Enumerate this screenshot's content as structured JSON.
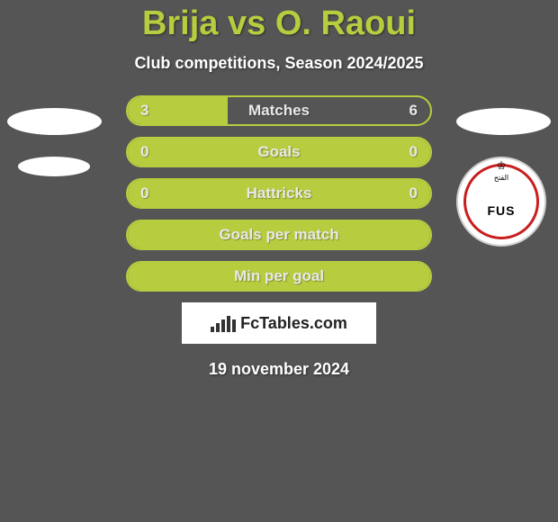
{
  "title": "Brija vs O. Raoui",
  "subtitle": "Club competitions, Season 2024/2025",
  "colors": {
    "background": "#555555",
    "accent": "#b8cc3f",
    "stat_text": "#e8e8e8",
    "white": "#ffffff",
    "logo_border": "#c81e1e"
  },
  "stats": [
    {
      "label": "Matches",
      "left_value": "3",
      "right_value": "6",
      "left_fill_pct": 33,
      "right_fill_pct": 67,
      "show_values": true
    },
    {
      "label": "Goals",
      "left_value": "0",
      "right_value": "0",
      "left_fill_pct": 100,
      "right_fill_pct": 0,
      "show_values": true,
      "full_fill": true
    },
    {
      "label": "Hattricks",
      "left_value": "0",
      "right_value": "0",
      "left_fill_pct": 100,
      "right_fill_pct": 0,
      "show_values": true,
      "full_fill": true
    },
    {
      "label": "Goals per match",
      "left_value": "",
      "right_value": "",
      "left_fill_pct": 100,
      "right_fill_pct": 0,
      "show_values": false,
      "full_fill": true
    },
    {
      "label": "Min per goal",
      "left_value": "",
      "right_value": "",
      "left_fill_pct": 100,
      "right_fill_pct": 0,
      "show_values": false,
      "full_fill": true
    }
  ],
  "logo": {
    "text": "FUS",
    "arabic": "الفتح"
  },
  "fctables_label": "FcTables.com",
  "date": "19 november 2024",
  "chart_bars": [
    6,
    10,
    14,
    18,
    14
  ]
}
